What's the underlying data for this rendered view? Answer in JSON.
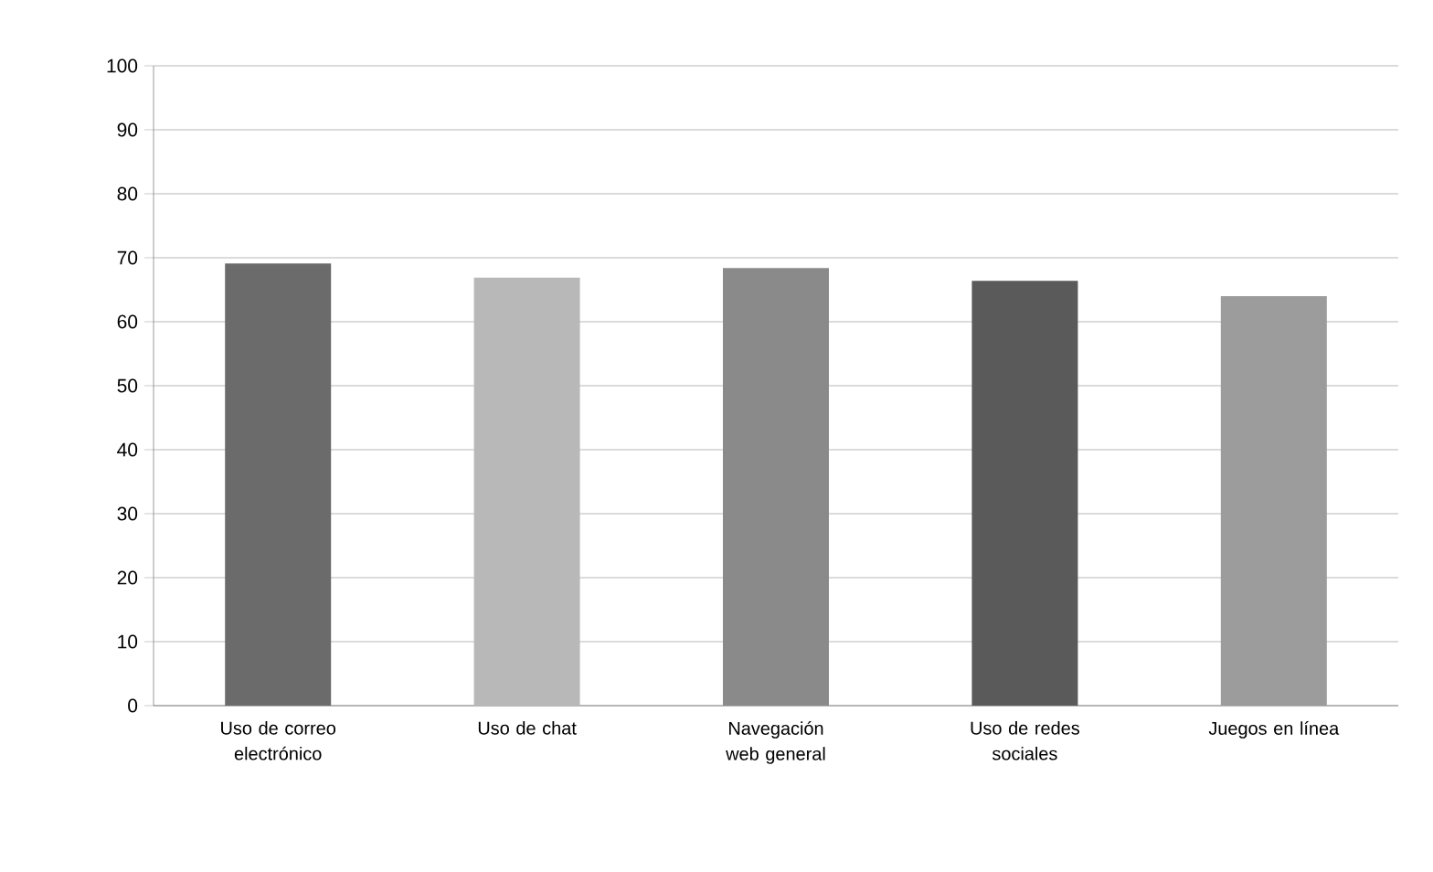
{
  "chart_data": {
    "type": "bar",
    "categories": [
      "Uso de correo electrónico",
      "Uso de chat",
      "Navegación web general",
      "Uso de redes sociales",
      "Juegos en línea"
    ],
    "values": [
      69.1,
      66.9,
      68.4,
      66.4,
      64.0
    ],
    "colors": [
      "#6b6b6b",
      "#b8b8b8",
      "#8a8a8a",
      "#5a5a5a",
      "#9c9c9c"
    ],
    "ylim": [
      0,
      100
    ],
    "yticks": [
      0,
      10,
      20,
      30,
      40,
      50,
      60,
      70,
      80,
      90,
      100
    ],
    "grid": "y"
  }
}
